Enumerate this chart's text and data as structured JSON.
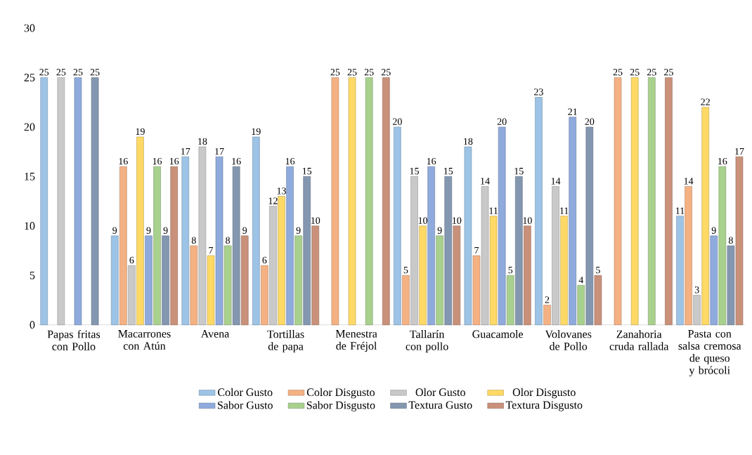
{
  "chart_data": {
    "type": "bar",
    "categories": [
      "Papas fritas con Pollo",
      "Macarrones con Atún",
      "Avena",
      "Tortillas de papa",
      "Menestra de Fréjol",
      "Tallarín con pollo",
      "Guacamole",
      "Volovanes de Pollo",
      "Zanahoria cruda rallada",
      "Pasta con salsa cremosa de queso y brócoli"
    ],
    "series": [
      {
        "name": "Color Gusto",
        "color": "#9dc3e6",
        "values": [
          25,
          9,
          17,
          19,
          null,
          20,
          18,
          23,
          null,
          11
        ],
        "value_labels": [
          "25",
          "9",
          "17",
          "19",
          null,
          "20",
          "18",
          "23",
          null,
          "11"
        ]
      },
      {
        "name": "Color Disgusto",
        "color": "#f4b183",
        "values": [
          null,
          16,
          8,
          6,
          25,
          5,
          7,
          2,
          25,
          14
        ],
        "value_labels": [
          null,
          "16",
          "8",
          "6",
          "25",
          "5",
          "7",
          "2",
          "25",
          "14"
        ]
      },
      {
        "name": "Olor Gusto",
        "color": "#c9c9c9",
        "values": [
          25,
          6,
          18,
          12,
          null,
          15,
          14,
          14,
          null,
          3
        ],
        "value_labels": [
          "25",
          "6",
          "18",
          "12",
          null,
          "15",
          "14",
          "14",
          null,
          "3"
        ]
      },
      {
        "name": "Olor Disgusto",
        "color": "#ffd966",
        "values": [
          null,
          19,
          7,
          13,
          25,
          10,
          11,
          11,
          25,
          22
        ],
        "value_labels": [
          null,
          "19",
          "7",
          "13",
          "25",
          "10",
          "11",
          "11",
          "25",
          "22"
        ]
      },
      {
        "name": "Sabor Gusto",
        "color": "#8faadc",
        "values": [
          25,
          9,
          17,
          16,
          null,
          16,
          20,
          21,
          null,
          9
        ],
        "value_labels": [
          "25",
          "9",
          "17",
          "16",
          null,
          "16",
          "20",
          "21",
          null,
          "9"
        ]
      },
      {
        "name": "Sabor Disgusto",
        "color": "#a9d18e",
        "values": [
          null,
          16,
          8,
          9,
          25,
          9,
          5,
          4,
          25,
          16
        ],
        "value_labels": [
          null,
          "16",
          "8",
          "9",
          "25",
          "9",
          "5",
          "4",
          "25",
          "16"
        ]
      },
      {
        "name": "Textura Gusto",
        "color": "#8497b0",
        "values": [
          25,
          9,
          16,
          15,
          null,
          15,
          15,
          20,
          null,
          8
        ],
        "value_labels": [
          "25",
          "9",
          "16",
          "15",
          null,
          "15",
          "15",
          "20",
          null,
          "8"
        ]
      },
      {
        "name": "Textura Disgusto",
        "color": "#c9917a",
        "values": [
          null,
          16,
          9,
          10,
          25,
          10,
          10,
          5,
          25,
          17
        ],
        "value_labels": [
          null,
          "16",
          "9",
          "10",
          "25",
          "10",
          "10",
          "5",
          "25",
          "17"
        ]
      }
    ],
    "ylim": [
      0,
      30
    ],
    "yticks": [
      0,
      5,
      10,
      15,
      20,
      25,
      30
    ],
    "legend": "bottom"
  }
}
